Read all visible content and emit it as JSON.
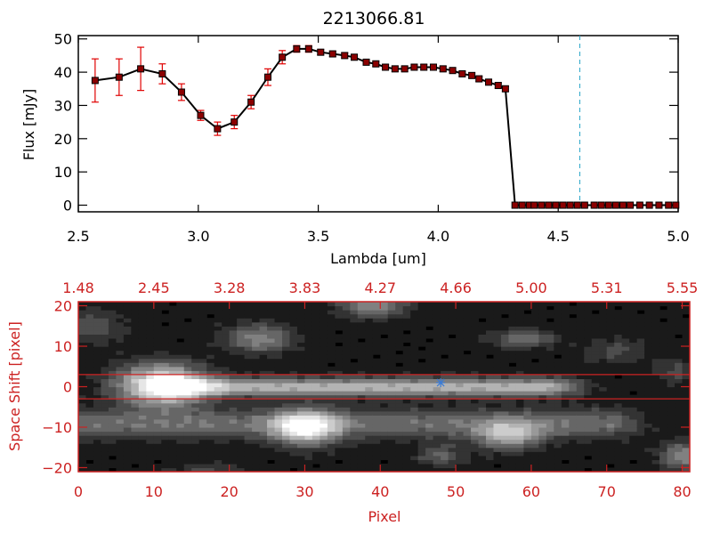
{
  "title": "2213066.81",
  "colors": {
    "spectrum_line": "#000000",
    "point_fill": "#8b0000",
    "error_bar": "#e00000",
    "cutoff_line": "#2aa6c8",
    "image_frame": "#cc2222",
    "marker": "#3a7bd5"
  },
  "chart_data": [
    {
      "type": "line",
      "title": "2213066.81",
      "xlabel": "Lambda [um]",
      "ylabel": "Flux [mJy]",
      "xlim": [
        2.5,
        5.0
      ],
      "ylim": [
        -2,
        51
      ],
      "x_ticks": [
        "2.5",
        "3.0",
        "3.5",
        "4.0",
        "4.5",
        "5.0"
      ],
      "x_tick_values": [
        2.5,
        3.0,
        3.5,
        4.0,
        4.5,
        5.0
      ],
      "y_ticks": [
        "0",
        "10",
        "20",
        "30",
        "40",
        "50"
      ],
      "y_tick_values": [
        0,
        10,
        20,
        30,
        40,
        50
      ],
      "vline_x": 4.59,
      "series": [
        {
          "x": [
            2.57,
            2.67,
            2.76,
            2.85,
            2.93,
            3.01,
            3.08,
            3.15,
            3.22,
            3.29,
            3.35,
            3.41,
            3.46,
            3.51,
            3.56,
            3.61,
            3.65,
            3.7,
            3.74,
            3.78,
            3.82,
            3.86,
            3.9,
            3.94,
            3.98,
            4.02,
            4.06,
            4.1,
            4.14,
            4.17,
            4.21,
            4.25,
            4.28,
            4.32,
            4.35,
            4.38,
            4.4,
            4.43,
            4.46,
            4.49,
            4.52,
            4.55,
            4.58,
            4.61,
            4.65,
            4.68,
            4.71,
            4.74,
            4.77,
            4.8,
            4.84,
            4.88,
            4.92,
            4.96,
            4.99
          ],
          "y": [
            37.5,
            38.5,
            41,
            39.5,
            34,
            27,
            23,
            25,
            31,
            38.5,
            44.5,
            47,
            47,
            46,
            45.5,
            45,
            44.5,
            43,
            42.5,
            41.5,
            41,
            41,
            41.5,
            41.5,
            41.5,
            41,
            40.5,
            39.5,
            39,
            38,
            37,
            36,
            35,
            0,
            0,
            0,
            0,
            0,
            0,
            0,
            0,
            0,
            0,
            0,
            0,
            0,
            0,
            0,
            0,
            0,
            0,
            0,
            0,
            0,
            0
          ],
          "yerr": [
            6.5,
            5.5,
            6.5,
            3,
            2.5,
            1.5,
            2,
            2,
            2,
            2.5,
            2,
            1,
            1,
            0.8,
            0.8,
            0.8,
            0.8,
            0.8,
            0.8,
            0.8,
            0.8,
            0.8,
            0.8,
            0.8,
            0.8,
            0.8,
            0.8,
            0.8,
            0.8,
            0.8,
            0.8,
            0.8,
            0.8,
            0,
            0,
            0,
            0,
            0,
            0,
            0,
            0,
            0,
            0,
            0,
            0,
            0,
            0,
            0,
            0,
            0,
            0,
            0,
            0,
            0,
            0
          ]
        }
      ],
      "grid": false
    },
    {
      "type": "heatmap",
      "xlabel": "Pixel",
      "ylabel": "Space Shift [pixel]",
      "xlim": [
        0,
        81
      ],
      "ylim": [
        -21,
        21
      ],
      "x_ticks": [
        "0",
        "10",
        "20",
        "30",
        "40",
        "50",
        "60",
        "70",
        "80"
      ],
      "x_tick_values": [
        0,
        10,
        20,
        30,
        40,
        50,
        60,
        70,
        80
      ],
      "y_ticks": [
        "−20",
        "−10",
        "0",
        "10",
        "20"
      ],
      "y_tick_values": [
        -20,
        -10,
        0,
        10,
        20
      ],
      "top_ticks": [
        "1.48",
        "2.45",
        "3.28",
        "3.83",
        "4.27",
        "4.66",
        "5.00",
        "5.31",
        "5.55"
      ],
      "top_tick_values": [
        0,
        10,
        20,
        30,
        40,
        50,
        60,
        70,
        80
      ],
      "hlines_y": [
        3,
        -3
      ],
      "marker": {
        "x": 48,
        "y": 1
      },
      "colormap": "grayscale",
      "features": [
        {
          "kind": "blob",
          "x": 11,
          "y": 0.5,
          "amp": 1.0,
          "sx": 4,
          "sy": 3.5
        },
        {
          "kind": "streak",
          "x0": 14,
          "x1": 62,
          "y": 0,
          "amp": 0.62,
          "sy": 1.6
        },
        {
          "kind": "blob",
          "x": 30,
          "y": -10,
          "amp": 0.8,
          "sx": 3,
          "sy": 3
        },
        {
          "kind": "streak",
          "x0": 0,
          "x1": 70,
          "y": -9,
          "amp": 0.35,
          "sy": 2.5
        },
        {
          "kind": "blob",
          "x": 57,
          "y": -12,
          "amp": 0.55,
          "sx": 3,
          "sy": 2.5
        },
        {
          "kind": "blob",
          "x": 24,
          "y": 12,
          "amp": 0.45,
          "sx": 3,
          "sy": 2.5
        },
        {
          "kind": "blob",
          "x": 39,
          "y": 20,
          "amp": 0.45,
          "sx": 3,
          "sy": 2
        },
        {
          "kind": "blob",
          "x": 59,
          "y": 12,
          "amp": 0.35,
          "sx": 3,
          "sy": 1.5
        },
        {
          "kind": "blob",
          "x": 80,
          "y": -17,
          "amp": 0.45,
          "sx": 2,
          "sy": 2.5
        },
        {
          "kind": "blob",
          "x": 48,
          "y": -17,
          "amp": 0.3,
          "sx": 2,
          "sy": 2
        },
        {
          "kind": "blob",
          "x": 2,
          "y": 15,
          "amp": 0.22,
          "sx": 3,
          "sy": 3
        },
        {
          "kind": "blob",
          "x": 71,
          "y": 9,
          "amp": 0.2,
          "sx": 3,
          "sy": 2
        },
        {
          "kind": "blob",
          "x": 17,
          "y": -21,
          "amp": 0.2,
          "sx": 3,
          "sy": 1.5
        },
        {
          "kind": "blob",
          "x": 79,
          "y": 4,
          "amp": 0.2,
          "sx": 2,
          "sy": 2
        }
      ]
    }
  ]
}
